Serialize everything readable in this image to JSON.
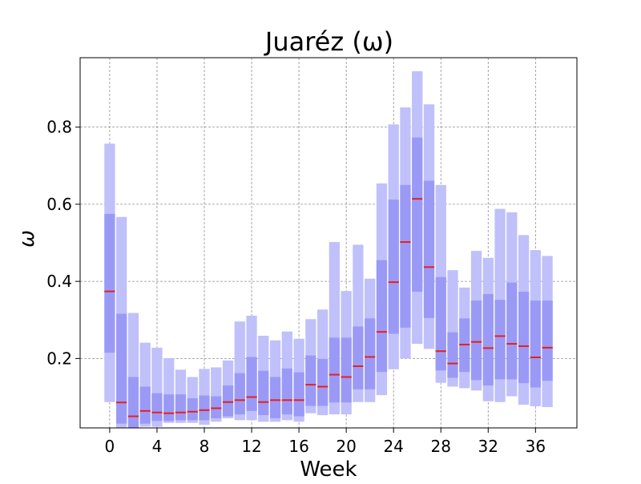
{
  "chart_data": {
    "type": "bar",
    "title": "Juaréz (ω)",
    "xlabel": "Week",
    "ylabel": "ω",
    "xlim": [
      -2.5,
      39.5
    ],
    "ylim": [
      0.02,
      0.98
    ],
    "xticks": [
      0,
      4,
      8,
      12,
      16,
      20,
      24,
      28,
      32,
      36
    ],
    "yticks": [
      0.2,
      0.4,
      0.6,
      0.8
    ],
    "grid": true,
    "colors": {
      "outer_band": "#c0c0fa",
      "inner_band": "#9a9af6",
      "median": "#e8201c",
      "grid": "#8f8f8f"
    },
    "weeks": [
      {
        "week": 0,
        "outer": [
          0.087,
          0.757
        ],
        "inner": [
          0.215,
          0.575
        ],
        "median": 0.374
      },
      {
        "week": 1,
        "outer": [
          0.02,
          0.567
        ],
        "inner": [
          0.031,
          0.316
        ],
        "median": 0.086
      },
      {
        "week": 2,
        "outer": [
          0.02,
          0.318
        ],
        "inner": [
          0.02,
          0.152
        ],
        "median": 0.05
      },
      {
        "week": 3,
        "outer": [
          0.023,
          0.241
        ],
        "inner": [
          0.031,
          0.127
        ],
        "median": 0.064
      },
      {
        "week": 4,
        "outer": [
          0.023,
          0.228
        ],
        "inner": [
          0.038,
          0.11
        ],
        "median": 0.06
      },
      {
        "week": 5,
        "outer": [
          0.033,
          0.201
        ],
        "inner": [
          0.038,
          0.107
        ],
        "median": 0.058
      },
      {
        "week": 6,
        "outer": [
          0.033,
          0.171
        ],
        "inner": [
          0.04,
          0.107
        ],
        "median": 0.06
      },
      {
        "week": 7,
        "outer": [
          0.033,
          0.152
        ],
        "inner": [
          0.04,
          0.097
        ],
        "median": 0.062
      },
      {
        "week": 8,
        "outer": [
          0.028,
          0.173
        ],
        "inner": [
          0.04,
          0.104
        ],
        "median": 0.066
      },
      {
        "week": 9,
        "outer": [
          0.036,
          0.177
        ],
        "inner": [
          0.045,
          0.102
        ],
        "median": 0.071
      },
      {
        "week": 10,
        "outer": [
          0.045,
          0.195
        ],
        "inner": [
          0.05,
          0.13
        ],
        "median": 0.087
      },
      {
        "week": 11,
        "outer": [
          0.04,
          0.296
        ],
        "inner": [
          0.055,
          0.162
        ],
        "median": 0.092
      },
      {
        "week": 12,
        "outer": [
          0.04,
          0.311
        ],
        "inner": [
          0.064,
          0.204
        ],
        "median": 0.1
      },
      {
        "week": 13,
        "outer": [
          0.036,
          0.259
        ],
        "inner": [
          0.053,
          0.168
        ],
        "median": 0.087
      },
      {
        "week": 14,
        "outer": [
          0.036,
          0.247
        ],
        "inner": [
          0.045,
          0.152
        ],
        "median": 0.092
      },
      {
        "week": 15,
        "outer": [
          0.04,
          0.27
        ],
        "inner": [
          0.055,
          0.174
        ],
        "median": 0.092
      },
      {
        "week": 16,
        "outer": [
          0.036,
          0.251
        ],
        "inner": [
          0.05,
          0.164
        ],
        "median": 0.092
      },
      {
        "week": 17,
        "outer": [
          0.058,
          0.302
        ],
        "inner": [
          0.077,
          0.208
        ],
        "median": 0.132
      },
      {
        "week": 18,
        "outer": [
          0.053,
          0.327
        ],
        "inner": [
          0.077,
          0.199
        ],
        "median": 0.127
      },
      {
        "week": 19,
        "outer": [
          0.055,
          0.502
        ],
        "inner": [
          0.086,
          0.254
        ],
        "median": 0.158
      },
      {
        "week": 20,
        "outer": [
          0.055,
          0.375
        ],
        "inner": [
          0.086,
          0.254
        ],
        "median": 0.152
      },
      {
        "week": 21,
        "outer": [
          0.087,
          0.495
        ],
        "inner": [
          0.12,
          0.283
        ],
        "median": 0.18
      },
      {
        "week": 22,
        "outer": [
          0.087,
          0.407
        ],
        "inner": [
          0.12,
          0.304
        ],
        "median": 0.204
      },
      {
        "week": 23,
        "outer": [
          0.105,
          0.654
        ],
        "inner": [
          0.165,
          0.455
        ],
        "median": 0.269
      },
      {
        "week": 24,
        "outer": [
          0.172,
          0.807
        ],
        "inner": [
          0.264,
          0.612
        ],
        "median": 0.398
      },
      {
        "week": 25,
        "outer": [
          0.2,
          0.851
        ],
        "inner": [
          0.28,
          0.65
        ],
        "median": 0.502
      },
      {
        "week": 26,
        "outer": [
          0.238,
          0.945
        ],
        "inner": [
          0.373,
          0.773
        ],
        "median": 0.614
      },
      {
        "week": 27,
        "outer": [
          0.225,
          0.859
        ],
        "inner": [
          0.305,
          0.661
        ],
        "median": 0.437
      },
      {
        "week": 28,
        "outer": [
          0.137,
          0.65
        ],
        "inner": [
          0.169,
          0.411
        ],
        "median": 0.219
      },
      {
        "week": 29,
        "outer": [
          0.127,
          0.429
        ],
        "inner": [
          0.15,
          0.268
        ],
        "median": 0.187
      },
      {
        "week": 30,
        "outer": [
          0.123,
          0.384
        ],
        "inner": [
          0.165,
          0.304
        ],
        "median": 0.236
      },
      {
        "week": 31,
        "outer": [
          0.117,
          0.479
        ],
        "inner": [
          0.144,
          0.35
        ],
        "median": 0.243
      },
      {
        "week": 32,
        "outer": [
          0.089,
          0.461
        ],
        "inner": [
          0.13,
          0.367
        ],
        "median": 0.227
      },
      {
        "week": 33,
        "outer": [
          0.087,
          0.588
        ],
        "inner": [
          0.146,
          0.352
        ],
        "median": 0.258
      },
      {
        "week": 34,
        "outer": [
          0.102,
          0.579
        ],
        "inner": [
          0.146,
          0.397
        ],
        "median": 0.238
      },
      {
        "week": 35,
        "outer": [
          0.08,
          0.52
        ],
        "inner": [
          0.136,
          0.373
        ],
        "median": 0.232
      },
      {
        "week": 36,
        "outer": [
          0.076,
          0.481
        ],
        "inner": [
          0.125,
          0.35
        ],
        "median": 0.203
      },
      {
        "week": 37,
        "outer": [
          0.074,
          0.466
        ],
        "inner": [
          0.142,
          0.35
        ],
        "median": 0.228
      }
    ]
  }
}
